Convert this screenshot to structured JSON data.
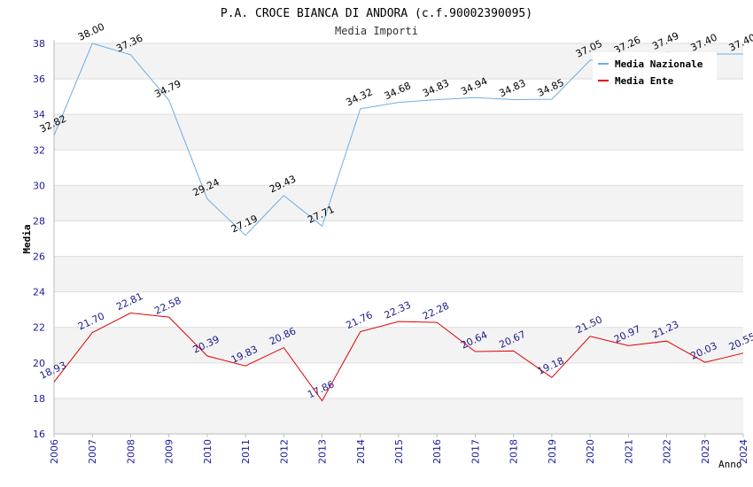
{
  "chart_data": {
    "type": "line",
    "title": "P.A. CROCE BIANCA DI ANDORA (c.f.90002390095)",
    "subtitle": "Media Importi",
    "xlabel": "Anno",
    "ylabel": "Media",
    "ylim": [
      16,
      38
    ],
    "yticks": [
      16,
      18,
      20,
      22,
      24,
      26,
      28,
      30,
      32,
      34,
      36,
      38
    ],
    "grid": true,
    "legend_position": "top-right",
    "x": [
      "2006",
      "2007",
      "2008",
      "2009",
      "2010",
      "2011",
      "2012",
      "2013",
      "2014",
      "2015",
      "2016",
      "2017",
      "2018",
      "2019",
      "2020",
      "2021",
      "2022",
      "2023",
      "2024"
    ],
    "series": [
      {
        "name": "Media Nazionale",
        "color": "#6aaee8",
        "label_color": "#000000",
        "values": [
          32.82,
          38.0,
          37.36,
          34.79,
          29.24,
          27.19,
          29.43,
          27.71,
          34.32,
          34.68,
          34.83,
          34.94,
          34.83,
          34.85,
          37.05,
          37.26,
          37.49,
          37.4,
          37.4
        ],
        "labels": [
          "32.82",
          "38.00",
          "37.36",
          "34.79",
          "29.24",
          "27.19",
          "29.43",
          "27.71",
          "34.32",
          "34.68",
          "34.83",
          "34.94",
          "34.83",
          "34.85",
          "37.05",
          "37.26",
          "37.49",
          "37.40",
          "37.40"
        ]
      },
      {
        "name": "Media Ente",
        "color": "#e00000",
        "label_color": "#1a1a8c",
        "values": [
          18.93,
          21.7,
          22.81,
          22.58,
          20.39,
          19.83,
          20.86,
          17.86,
          21.76,
          22.33,
          22.28,
          20.64,
          20.67,
          19.18,
          21.5,
          20.97,
          21.23,
          20.03,
          20.55
        ],
        "labels": [
          "18.93",
          "21.70",
          "22.81",
          "22.58",
          "20.39",
          "19.83",
          "20.86",
          "17.86",
          "21.76",
          "22.33",
          "22.28",
          "20.64",
          "20.67",
          "19.18",
          "21.50",
          "20.97",
          "21.23",
          "20.03",
          "20.55"
        ]
      }
    ]
  }
}
